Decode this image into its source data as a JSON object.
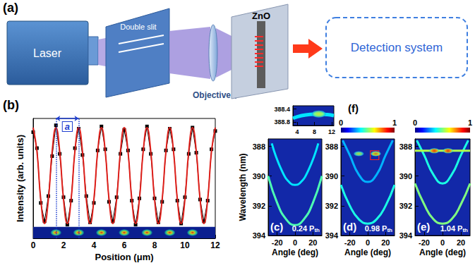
{
  "diagram": {
    "label": "(a)",
    "laser": "Laser",
    "slit": "Double slit",
    "objective": "Objective",
    "sample": "ZnO",
    "detector": "Detection system"
  },
  "chart_data": [
    {
      "type": "line",
      "label": "(b)",
      "x_label": "Position (μm)",
      "y_label": "Intensity (arb. units)",
      "x": [
        0,
        0.25,
        0.5,
        0.75,
        1,
        1.25,
        1.5,
        1.75,
        2,
        2.25,
        2.5,
        2.75,
        3,
        3.25,
        3.5,
        3.75,
        4,
        4.25,
        4.5,
        4.75,
        5,
        5.25,
        5.5,
        5.75,
        6,
        6.25,
        6.5,
        6.75,
        7,
        7.25,
        7.5,
        7.75,
        8,
        8.25,
        8.5,
        8.75,
        9,
        9.25,
        9.5,
        9.75,
        10,
        10.25,
        10.5,
        10.75,
        11,
        11.25,
        11.5,
        11.75,
        12
      ],
      "series": [
        {
          "color": "#000000",
          "marker": "square",
          "line_style": "solid",
          "values": [
            0.93,
            0.79,
            0.31,
            0.15,
            0.37,
            0.72,
            0.99,
            0.74,
            0.36,
            0.12,
            0.33,
            0.79,
            0.96,
            0.73,
            0.37,
            0.14,
            0.31,
            0.77,
            0.98,
            0.78,
            0.32,
            0.15,
            0.36,
            0.74,
            0.95,
            0.77,
            0.33,
            0.12,
            0.35,
            0.78,
            0.98,
            0.74,
            0.35,
            0.14,
            0.32,
            0.77,
            0.96,
            0.78,
            0.33,
            0.13,
            0.36,
            0.74,
            0.97,
            0.75,
            0.34,
            0.15,
            0.33,
            0.78,
            0.94
          ]
        },
        {
          "color": "#e0201b",
          "marker": "none",
          "line_style": "solid",
          "values": [
            0.97,
            0.76,
            0.34,
            0.13,
            0.34,
            0.76,
            0.97,
            0.76,
            0.34,
            0.13,
            0.34,
            0.76,
            0.97,
            0.76,
            0.34,
            0.13,
            0.34,
            0.76,
            0.97,
            0.76,
            0.34,
            0.13,
            0.34,
            0.76,
            0.97,
            0.76,
            0.34,
            0.13,
            0.34,
            0.76,
            0.97,
            0.76,
            0.34,
            0.13,
            0.34,
            0.76,
            0.97,
            0.76,
            0.34,
            0.13,
            0.34,
            0.76,
            0.97,
            0.76,
            0.34,
            0.13,
            0.34,
            0.76,
            0.97
          ]
        }
      ],
      "xlim": [
        0,
        12
      ],
      "xticks": [
        0,
        2,
        4,
        6,
        8,
        10,
        12
      ],
      "ylim": [
        0,
        1.05
      ],
      "tick_labels": "x",
      "annotations": [
        {
          "text": "a",
          "x": [
            1.5,
            3.0
          ]
        }
      ],
      "strip": {
        "y": [
          0,
          0.1
        ],
        "spots_x": [
          1.5,
          3,
          4.5,
          6,
          7.5,
          9,
          10.5
        ]
      }
    },
    {
      "type": "spectrum",
      "label": "(c)",
      "annotation": {
        "text": "0.24 P",
        "subscript": "th"
      },
      "x_label": "Angle (deg)",
      "y_label": "Wavelength (nm)",
      "xlim": [
        -30,
        30
      ],
      "xticks": [
        -20,
        0,
        20
      ],
      "ylim": [
        387.5,
        394
      ],
      "yticks": [
        388,
        390,
        392,
        394
      ],
      "colorbar": {
        "range": [
          0,
          1
        ]
      },
      "curves": [
        {
          "angle": [
            -30,
            -20,
            -10,
            0,
            10,
            20,
            30
          ],
          "wavelength": [
            390.0,
            391.8,
            392.9,
            393.3,
            392.9,
            391.8,
            390.0
          ],
          "intensity": 0.45
        },
        {
          "angle": [
            -26,
            -15,
            -5,
            0,
            5,
            15,
            26
          ],
          "wavelength": [
            387.8,
            389.6,
            390.5,
            390.6,
            390.5,
            389.6,
            387.8
          ],
          "intensity": 0.35
        }
      ],
      "spots": []
    },
    {
      "type": "spectrum",
      "label": "(d)",
      "annotation": {
        "text": "0.98 P",
        "subscript": "th"
      },
      "x_label": "Angle (deg)",
      "xlim": [
        -30,
        30
      ],
      "xticks": [
        -20,
        0,
        20
      ],
      "ylim": [
        387.5,
        394
      ],
      "yticks": [
        388,
        390,
        392,
        394
      ],
      "colorbar": {
        "range": [
          0,
          1
        ],
        "ticks": [
          0,
          1
        ]
      },
      "curves": [
        {
          "angle": [
            -30,
            -20,
            -10,
            0,
            10,
            20,
            30
          ],
          "wavelength": [
            390.6,
            392.0,
            392.9,
            393.2,
            392.9,
            392.0,
            390.6
          ],
          "intensity": 0.4
        },
        {
          "angle": [
            -28,
            -20,
            -10,
            0,
            10,
            20,
            28
          ],
          "wavelength": [
            387.6,
            388.6,
            389.9,
            390.4,
            389.9,
            388.6,
            387.6
          ],
          "intensity": 0.3
        }
      ],
      "spots": [
        {
          "angle": -10,
          "wavelength": 388.5,
          "intensity": 0.6
        },
        {
          "angle": 9,
          "wavelength": 388.5,
          "intensity": 0.75
        }
      ],
      "zoom_box": {
        "angle": [
          3,
          12.5
        ],
        "wavelength": [
          388.3,
          388.9
        ]
      }
    },
    {
      "type": "spectrum",
      "label": "(e)",
      "annotation": {
        "text": "1.04 P",
        "subscript": "th"
      },
      "x_label": "Angle (deg)",
      "xlim": [
        -30,
        30
      ],
      "xticks": [
        -20,
        0,
        20
      ],
      "ylim": [
        387.5,
        394
      ],
      "yticks": [
        388,
        390,
        392,
        394
      ],
      "colorbar": {
        "range": [
          0,
          1
        ],
        "ticks": [
          0,
          1
        ]
      },
      "curves": [
        {
          "angle": [
            -30,
            -20,
            -10,
            0,
            10,
            20,
            30
          ],
          "wavelength": [
            390.5,
            391.9,
            392.9,
            393.2,
            392.9,
            391.9,
            390.5
          ],
          "intensity": 0.5
        },
        {
          "angle": [
            -28,
            -20,
            -10,
            0,
            10,
            20,
            28
          ],
          "wavelength": [
            387.6,
            388.6,
            389.9,
            390.5,
            389.9,
            388.6,
            387.6
          ],
          "intensity": 0.4
        },
        {
          "angle": [
            -30,
            30
          ],
          "wavelength": [
            388.3,
            388.3
          ],
          "intensity": 0.55
        }
      ],
      "spots": [
        {
          "angle": -9,
          "wavelength": 388.3,
          "intensity": 0.9
        },
        {
          "angle": 6,
          "wavelength": 388.3,
          "intensity": 0.9
        }
      ]
    },
    {
      "type": "spectrum",
      "label": "(f)",
      "xlim": [
        3,
        12.5
      ],
      "xticks": [
        4,
        8,
        12
      ],
      "ylim": [
        388.3,
        388.9
      ],
      "yticks": [
        388.4,
        388.8
      ],
      "colorbar": {
        "range": [
          0,
          1
        ]
      },
      "curves": [
        {
          "angle": [
            3,
            5,
            7,
            9,
            11,
            12.5
          ],
          "wavelength": [
            388.68,
            388.6,
            388.56,
            388.55,
            388.57,
            388.6
          ],
          "intensity": 0.35
        }
      ],
      "spots": [
        {
          "angle": 9,
          "wavelength": 388.55,
          "intensity": 0.65
        }
      ]
    }
  ]
}
